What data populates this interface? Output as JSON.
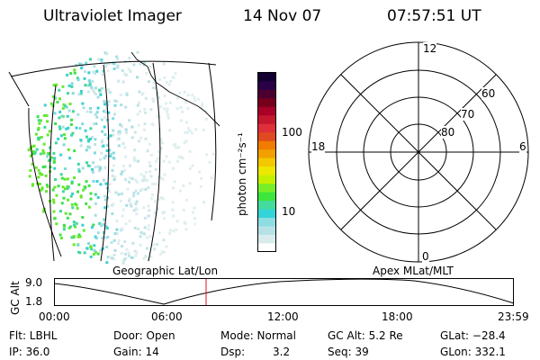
{
  "header": {
    "instrument": "Ultraviolet Imager",
    "date": "14 Nov 07",
    "time": "07:57:51 UT"
  },
  "colorbar": {
    "label": "photon cm⁻²s⁻¹",
    "ticks": [
      "100",
      "10"
    ],
    "colors": [
      "#ffffff",
      "#d8ecee",
      "#b6e2e6",
      "#8edde2",
      "#33d4d8",
      "#44dc9c",
      "#3ce63c",
      "#78ee28",
      "#c4f000",
      "#ece800",
      "#f4c800",
      "#f2a000",
      "#f07c00",
      "#e04a20",
      "#de3038",
      "#c4182e",
      "#a80026",
      "#76001c",
      "#4c0030",
      "#2a0048",
      "#140030"
    ]
  },
  "panels": {
    "left_label": "Geographic Lat/Lon",
    "right_label": "Apex MLat/MLT"
  },
  "polar": {
    "mlt_labels": {
      "top": "12",
      "bottom": "0",
      "left": "18",
      "right": "6"
    },
    "mlat_labels": [
      "60",
      "70",
      "80"
    ]
  },
  "timeline": {
    "ylabel": "GC Alt",
    "yticks": [
      "9.0",
      "1.8"
    ],
    "xticks": [
      "00:00",
      "06:00",
      "12:00",
      "18:00",
      "23:59"
    ],
    "marker_time": "07:57:51"
  },
  "info": {
    "col1": [
      "Flt: LBHL",
      "IP: 36.0"
    ],
    "col2": [
      "Door: Open",
      "Gain: 14"
    ],
    "col3a": [
      "Mode: Normal",
      "Dsp:"
    ],
    "dsp_value": "3.2",
    "col4": [
      "GC Alt: 5.2 Re",
      "Seq: 39"
    ],
    "col5": [
      "GLat: −28.4",
      "GLon: 332.1"
    ]
  }
}
